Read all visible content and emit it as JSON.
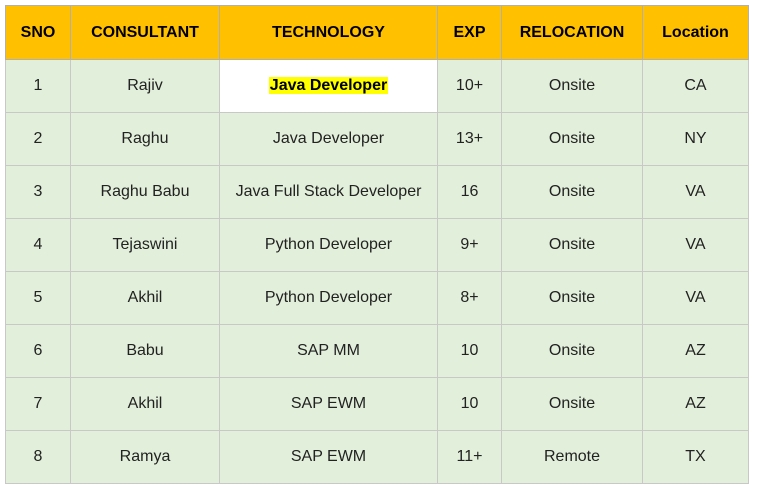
{
  "table": {
    "headers": [
      "SNO",
      "CONSULTANT",
      "TECHNOLOGY",
      "EXP",
      "RELOCATION",
      "Location"
    ],
    "rows": [
      [
        "1",
        "Rajiv",
        "Java Developer",
        "10+",
        "Onsite",
        "CA"
      ],
      [
        "2",
        "Raghu",
        "Java Developer",
        "13+",
        "Onsite",
        "NY"
      ],
      [
        "3",
        "Raghu Babu",
        "Java Full Stack Developer",
        "16",
        "Onsite",
        "VA"
      ],
      [
        "4",
        "Tejaswini",
        "Python Developer",
        "9+",
        "Onsite",
        "VA"
      ],
      [
        "5",
        "Akhil",
        "Python Developer",
        "8+",
        "Onsite",
        "VA"
      ],
      [
        "6",
        "Babu",
        "SAP MM",
        "10",
        "Onsite",
        "AZ"
      ],
      [
        "7",
        "Akhil",
        "SAP EWM",
        "10",
        "Onsite",
        "AZ"
      ],
      [
        "8",
        "Ramya",
        "SAP EWM",
        "11+",
        "Remote",
        "TX"
      ]
    ]
  },
  "colors": {
    "header_bg": "#ffc000",
    "row_bg": "#e2efda",
    "highlight": "#ffff00"
  }
}
